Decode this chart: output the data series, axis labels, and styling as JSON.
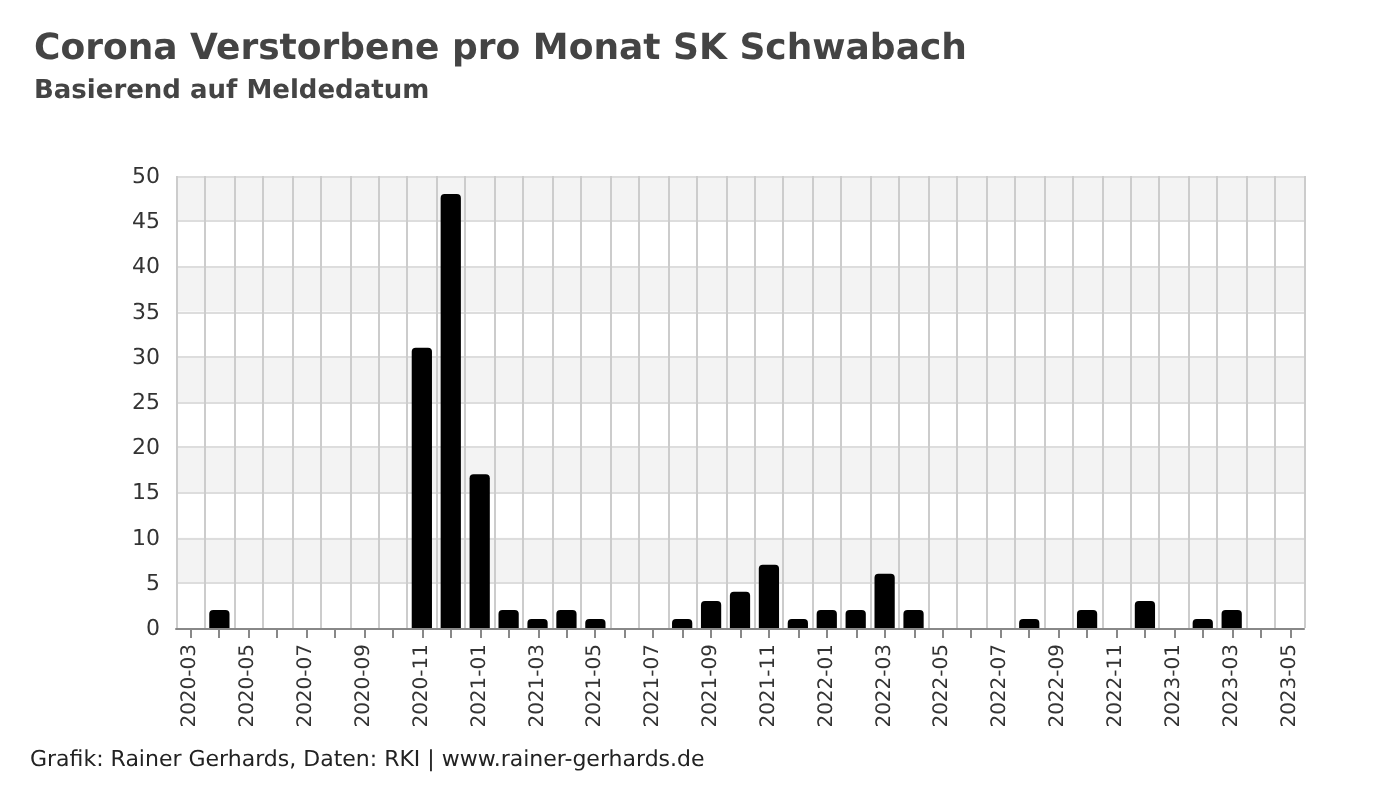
{
  "chart_data": {
    "type": "bar",
    "title": "Corona Verstorbene pro Monat SK Schwabach",
    "subtitle": "Basierend auf Meldedatum",
    "categories": [
      "2020-03",
      null,
      "2020-05",
      null,
      "2020-07",
      null,
      "2020-09",
      null,
      "2020-11",
      null,
      "2021-01",
      null,
      "2021-03",
      null,
      "2021-05",
      null,
      "2021-07",
      null,
      "2021-09",
      null,
      "2021-11",
      null,
      "2022-01",
      null,
      "2022-03",
      null,
      "2022-05",
      null,
      "2022-07",
      null,
      "2022-09",
      null,
      "2022-11",
      null,
      "2023-01",
      null,
      "2023-03",
      null,
      "2023-05"
    ],
    "values": [
      0,
      2,
      0,
      0,
      0,
      0,
      0,
      0,
      31,
      48,
      17,
      2,
      1,
      2,
      1,
      0,
      0,
      1,
      3,
      4,
      7,
      1,
      2,
      2,
      6,
      2,
      0,
      0,
      0,
      1,
      0,
      2,
      0,
      3,
      0,
      1,
      2,
      0,
      0
    ],
    "color": "#000000",
    "ylim": [
      0,
      50
    ],
    "yticks": [
      0,
      5,
      10,
      15,
      20,
      25,
      30,
      35,
      40,
      45,
      50
    ],
    "grid": true,
    "annotations": [
      "Grafik: Rainer Gerhards, Daten: RKI | www.rainer-gerhards.de"
    ]
  }
}
